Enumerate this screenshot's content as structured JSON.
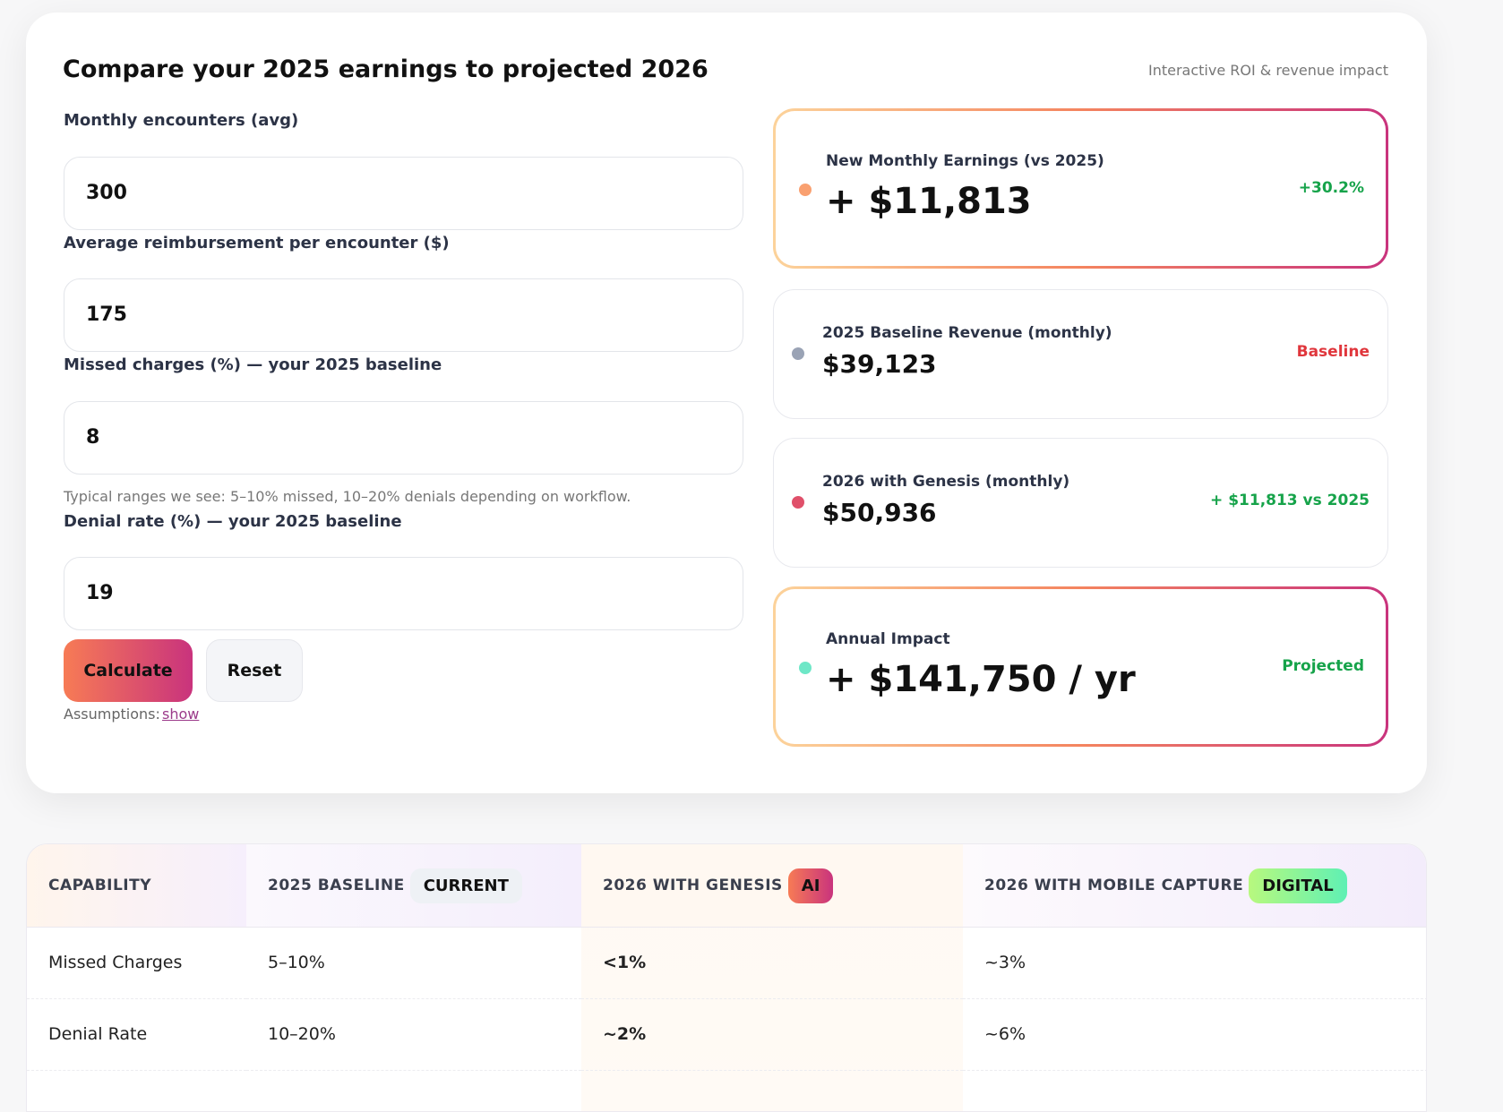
{
  "calculator": {
    "title": "Compare your 2025 earnings to projected 2026",
    "subtitle": "Interactive ROI & revenue impact",
    "fields": [
      {
        "label": "Monthly encounters (avg)",
        "value": "300"
      },
      {
        "label": "Average reimbursement per encounter ($)",
        "value": "175"
      },
      {
        "label": "Missed charges (%) — your 2025 baseline",
        "value": "8",
        "hint": "Typical ranges we see: 5–10% missed, 10–20% denials depending on workflow."
      },
      {
        "label": "Denial rate (%) — your 2025 baseline",
        "value": "19"
      }
    ],
    "buttons": {
      "calculate": "Calculate",
      "reset": "Reset"
    },
    "assumptions": {
      "label": "Assumptions:",
      "link": "show"
    }
  },
  "results": [
    {
      "label": "New Monthly Earnings (vs 2025)",
      "value": "+ $11,813",
      "badge": "+30.2%"
    },
    {
      "label": "2025 Baseline Revenue (monthly)",
      "value": "$39,123",
      "badge": "Baseline"
    },
    {
      "label": "2026 with Genesis (monthly)",
      "value": "$50,936",
      "badge": "+ $11,813 vs 2025"
    },
    {
      "label": "Annual Impact",
      "value": "+ $141,750 / yr",
      "badge": "Projected"
    }
  ],
  "table": {
    "headers": [
      {
        "label": "CAPABILITY"
      },
      {
        "label": "2025 BASELINE",
        "tag": "CURRENT"
      },
      {
        "label": "2026 WITH GENESIS",
        "tag": "AI"
      },
      {
        "label": "2026 WITH MOBILE CAPTURE",
        "tag": "DIGITAL"
      }
    ],
    "rows": [
      [
        "Missed Charges",
        "5–10%",
        "<1%",
        "~3%"
      ],
      [
        "Denial Rate",
        "10–20%",
        "~2%",
        "~6%"
      ]
    ]
  }
}
